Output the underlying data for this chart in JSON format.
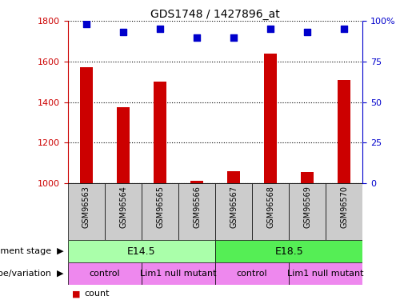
{
  "title": "GDS1748 / 1427896_at",
  "samples": [
    "GSM96563",
    "GSM96564",
    "GSM96565",
    "GSM96566",
    "GSM96567",
    "GSM96568",
    "GSM96569",
    "GSM96570"
  ],
  "counts": [
    1570,
    1375,
    1500,
    1010,
    1060,
    1640,
    1055,
    1510
  ],
  "percentile_ranks": [
    98,
    93,
    95,
    90,
    90,
    95,
    93,
    95
  ],
  "ylim_left": [
    1000,
    1800
  ],
  "ylim_right": [
    0,
    100
  ],
  "yticks_left": [
    1000,
    1200,
    1400,
    1600,
    1800
  ],
  "yticks_right": [
    0,
    25,
    50,
    75,
    100
  ],
  "bar_color": "#cc0000",
  "dot_color": "#0000cc",
  "bar_width": 0.35,
  "development_stage_labels": [
    "E14.5",
    "E18.5"
  ],
  "development_stage_ranges": [
    [
      0,
      3
    ],
    [
      4,
      7
    ]
  ],
  "development_stage_colors": [
    "#aaffaa",
    "#55ee55"
  ],
  "genotype_labels": [
    "control",
    "Lim1 null mutant",
    "control",
    "Lim1 null mutant"
  ],
  "genotype_ranges": [
    [
      0,
      1
    ],
    [
      2,
      3
    ],
    [
      4,
      5
    ],
    [
      6,
      7
    ]
  ],
  "genotype_color": "#ee88ee",
  "sample_box_color": "#cccccc",
  "left_axis_color": "#cc0000",
  "right_axis_color": "#0000cc"
}
